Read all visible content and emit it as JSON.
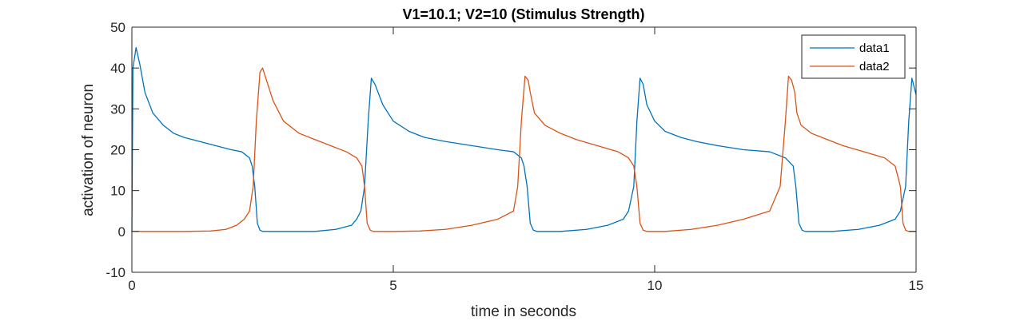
{
  "chart_data": {
    "type": "line",
    "title": "V1=10.1; V2=10 (Stimulus Strength)",
    "xlabel": "time in seconds",
    "ylabel": "activation of neuron",
    "xlim": [
      0,
      15
    ],
    "ylim": [
      -10,
      50
    ],
    "xticks": [
      0,
      5,
      10,
      15
    ],
    "yticks": [
      -10,
      0,
      10,
      20,
      30,
      40,
      50
    ],
    "grid": false,
    "legend": "top-right",
    "series": [
      {
        "name": "data1",
        "color": "#0072BD",
        "x": [
          0,
          0.02,
          0.08,
          0.15,
          0.25,
          0.4,
          0.6,
          0.8,
          1.0,
          1.3,
          1.6,
          1.9,
          2.1,
          2.25,
          2.3,
          2.35,
          2.4,
          2.45,
          2.5,
          3.0,
          3.5,
          3.9,
          4.2,
          4.3,
          4.38,
          4.45,
          4.52,
          4.58,
          4.65,
          4.8,
          5.0,
          5.3,
          5.6,
          6.0,
          6.5,
          7.0,
          7.3,
          7.45,
          7.5,
          7.56,
          7.62,
          7.68,
          7.75,
          8.2,
          8.7,
          9.1,
          9.4,
          9.5,
          9.6,
          9.66,
          9.72,
          9.78,
          9.85,
          10.0,
          10.2,
          10.5,
          10.8,
          11.2,
          11.7,
          12.2,
          12.5,
          12.65,
          12.7,
          12.76,
          12.82,
          12.88,
          12.95,
          13.4,
          13.9,
          14.3,
          14.6,
          14.7,
          14.8,
          14.86,
          14.92,
          15.0
        ],
        "y": [
          0,
          40,
          45,
          41,
          34,
          29,
          26,
          24,
          23,
          22,
          21,
          20,
          19.5,
          18,
          16,
          11,
          2,
          0.3,
          0,
          0,
          0,
          0.5,
          1.5,
          3,
          5,
          11,
          27,
          37.5,
          36,
          31,
          27,
          24.5,
          23,
          22,
          21,
          20,
          19.5,
          18,
          16,
          11,
          2,
          0.3,
          0,
          0,
          0.5,
          1.5,
          3,
          5,
          11,
          27,
          37.5,
          36,
          31,
          27,
          24.5,
          23,
          22,
          21,
          20,
          19.5,
          18,
          16,
          11,
          2,
          0.3,
          0,
          0,
          0,
          0.5,
          1.5,
          3,
          5,
          11,
          27,
          37.5,
          33.5
        ]
      },
      {
        "name": "data2",
        "color": "#D95319",
        "x": [
          0,
          0.5,
          1.0,
          1.5,
          1.8,
          2.0,
          2.15,
          2.25,
          2.32,
          2.38,
          2.45,
          2.5,
          2.55,
          2.7,
          2.9,
          3.2,
          3.5,
          3.8,
          4.1,
          4.3,
          4.4,
          4.45,
          4.5,
          4.56,
          4.62,
          4.7,
          5.0,
          5.5,
          6.0,
          6.5,
          7.0,
          7.3,
          7.38,
          7.45,
          7.52,
          7.58,
          7.62,
          7.7,
          7.9,
          8.2,
          8.5,
          8.9,
          9.3,
          9.5,
          9.6,
          9.66,
          9.72,
          9.78,
          9.85,
          10.2,
          10.7,
          11.2,
          11.7,
          12.2,
          12.4,
          12.5,
          12.56,
          12.62,
          12.68,
          12.72,
          12.8,
          13.0,
          13.3,
          13.6,
          14.0,
          14.4,
          14.6,
          14.7,
          14.75,
          14.8,
          14.86,
          14.92,
          15.0
        ],
        "y": [
          0,
          0,
          0,
          0.1,
          0.5,
          1.5,
          3,
          5,
          11,
          27,
          39,
          40,
          38,
          32,
          27,
          24,
          22.5,
          21,
          19.5,
          18,
          16,
          11,
          2,
          0.3,
          0,
          0,
          0,
          0.1,
          0.5,
          1.5,
          3,
          5,
          11,
          27,
          38,
          37,
          34,
          29,
          26,
          24,
          22.5,
          21,
          19.5,
          18,
          16,
          11,
          2,
          0.3,
          0,
          0,
          0.5,
          1.5,
          3,
          5,
          11,
          27,
          38,
          37,
          34,
          29,
          26,
          24,
          22.5,
          21,
          19.5,
          18,
          16,
          11,
          2,
          0.3,
          0,
          0,
          0
        ]
      }
    ]
  }
}
